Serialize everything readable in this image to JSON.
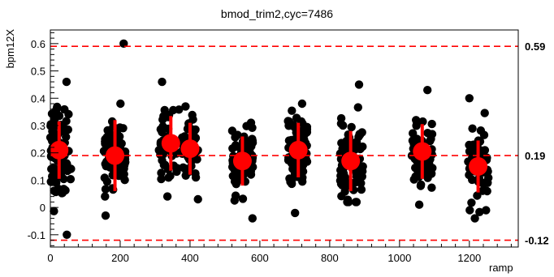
{
  "chart_data": {
    "type": "scatter",
    "title": "bmod_trim2,cyc=7486",
    "xlabel": "ramp",
    "ylabel": "bpm12X",
    "xlim": [
      0,
      1340
    ],
    "ylim": [
      -0.145,
      0.65
    ],
    "x_ticks": [
      0,
      200,
      400,
      600,
      800,
      1000,
      1200
    ],
    "y_ticks": [
      -0.1,
      0,
      0.1,
      0.2,
      0.3,
      0.4,
      0.5,
      0.6
    ],
    "x_tick_labels": [
      "0",
      "200",
      "400",
      "600",
      "800",
      "1000",
      "1200"
    ],
    "y_tick_labels": [
      "-0.1",
      "0",
      "0.1",
      "0.2",
      "0.3",
      "0.4",
      "0.5",
      "0.6"
    ],
    "reference_lines": [
      {
        "y": 0.59,
        "label": "0.59"
      },
      {
        "y": 0.19,
        "label": "0.19"
      },
      {
        "y": -0.12,
        "label": "-0.12"
      }
    ],
    "groups": [
      {
        "x": 25,
        "mean": 0.21,
        "err": 0.105,
        "x_range": [
          0,
          60
        ],
        "y_min": -0.1,
        "y_max": 0.46,
        "n": 90
      },
      {
        "x": 185,
        "mean": 0.19,
        "err": 0.13,
        "x_range": [
          150,
          215
        ],
        "y_min": -0.03,
        "y_max": 0.38,
        "n": 85
      },
      {
        "x": 345,
        "mean": 0.235,
        "err": 0.1,
        "x_range": [
          310,
          370
        ],
        "y_min": 0.04,
        "y_max": 0.46,
        "n": 45
      },
      {
        "x": 400,
        "mean": 0.215,
        "err": 0.095,
        "x_range": [
          375,
          425
        ],
        "y_min": 0.03,
        "y_max": 0.37,
        "n": 45
      },
      {
        "x": 550,
        "mean": 0.17,
        "err": 0.09,
        "x_range": [
          520,
          580
        ],
        "y_min": -0.04,
        "y_max": 0.31,
        "n": 80
      },
      {
        "x": 710,
        "mean": 0.21,
        "err": 0.1,
        "x_range": [
          680,
          740
        ],
        "y_min": -0.02,
        "y_max": 0.38,
        "n": 80
      },
      {
        "x": 860,
        "mean": 0.17,
        "err": 0.11,
        "x_range": [
          830,
          895
        ],
        "y_min": 0.02,
        "y_max": 0.45,
        "n": 85
      },
      {
        "x": 1065,
        "mean": 0.205,
        "err": 0.1,
        "x_range": [
          1035,
          1095
        ],
        "y_min": 0.01,
        "y_max": 0.43,
        "n": 70
      },
      {
        "x": 1225,
        "mean": 0.15,
        "err": 0.095,
        "x_range": [
          1195,
          1255
        ],
        "y_min": -0.04,
        "y_max": 0.4,
        "n": 70
      }
    ],
    "outliers": [
      {
        "x": 210,
        "y": 0.6
      }
    ],
    "colors": {
      "points": "#000000",
      "means": "#ff0000",
      "reference": "#ff0000"
    },
    "grid": false
  }
}
